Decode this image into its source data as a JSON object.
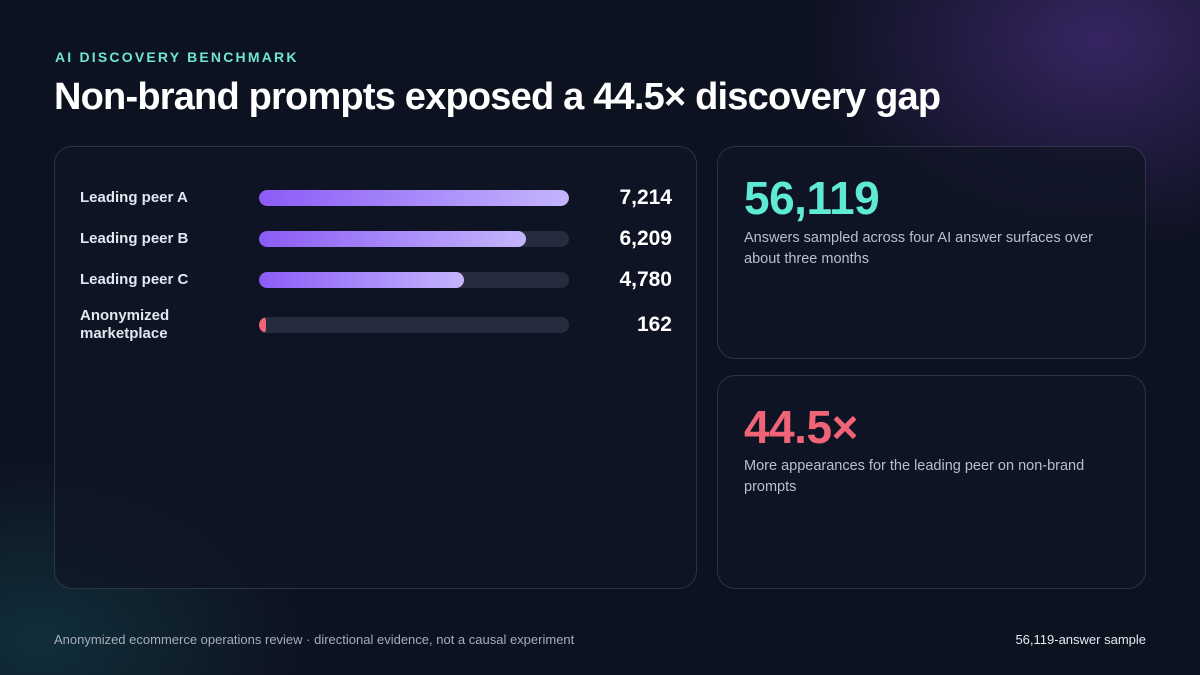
{
  "eyebrow": "AI DISCOVERY BENCHMARK",
  "headline": "Non-brand prompts exposed a 44.5× discovery gap",
  "chart_data": {
    "type": "bar",
    "orientation": "horizontal",
    "categories": [
      "Leading peer A",
      "Leading peer B",
      "Leading peer C",
      "Anonymized marketplace"
    ],
    "values": [
      7214,
      6209,
      4780,
      162
    ],
    "value_labels": [
      "7,214",
      "6,209",
      "4,780",
      "162"
    ],
    "xlim": [
      0,
      7214
    ],
    "grid": false,
    "colors": {
      "peer_gradient_start": "#8b5cf6",
      "peer_gradient_end": "#c4b5fd",
      "highlight": "#f06478",
      "track": "#242c3e"
    }
  },
  "stats": [
    {
      "value": "56,119",
      "description": "Answers sampled across four AI answer surfaces over about three months",
      "color": "#5eead4"
    },
    {
      "value": "44.5×",
      "description": "More appearances for the leading peer on non-brand prompts",
      "color": "#f06478"
    }
  ],
  "footer": {
    "left": "Anonymized ecommerce operations review · directional evidence, not a causal experiment",
    "right": "56,119-answer sample"
  }
}
